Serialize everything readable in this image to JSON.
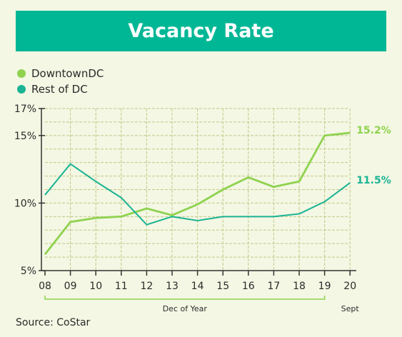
{
  "title": "Vacancy Rate",
  "source": "Source: CoStar",
  "colors": {
    "banner": "#00b795",
    "downtown": "#8fd24e",
    "rest": "#1bb394",
    "grid": "#c3c98a",
    "axis": "#333333",
    "background": "#f3f7e3"
  },
  "chart_data": {
    "type": "line",
    "title": "Vacancy Rate",
    "x": [
      "08",
      "09",
      "10",
      "11",
      "12",
      "13",
      "14",
      "15",
      "16",
      "17",
      "18",
      "19",
      "20"
    ],
    "xlabel": "",
    "ylabel": "",
    "ylim": [
      5,
      17
    ],
    "yticks": [
      "17%",
      "15%",
      "10%",
      "5%"
    ],
    "ytick_values": [
      17,
      15,
      10,
      5
    ],
    "series": [
      {
        "name": "DowntownDC",
        "values": [
          6.2,
          8.6,
          8.9,
          9.0,
          9.6,
          9.1,
          9.9,
          11.0,
          11.9,
          11.2,
          11.6,
          15.0,
          15.2
        ],
        "end_label": "15.2%"
      },
      {
        "name": "Rest of DC",
        "values": [
          10.6,
          12.9,
          11.6,
          10.4,
          8.4,
          9.0,
          8.7,
          9.0,
          9.0,
          9.0,
          9.2,
          10.1,
          11.5
        ],
        "end_label": "11.5%"
      }
    ],
    "x_groups": [
      {
        "label": "Dec of Year",
        "from": "08",
        "to": "19"
      },
      {
        "label": "Sept",
        "from": "20",
        "to": "20"
      }
    ],
    "grid": true,
    "legend_position": "top-left"
  }
}
